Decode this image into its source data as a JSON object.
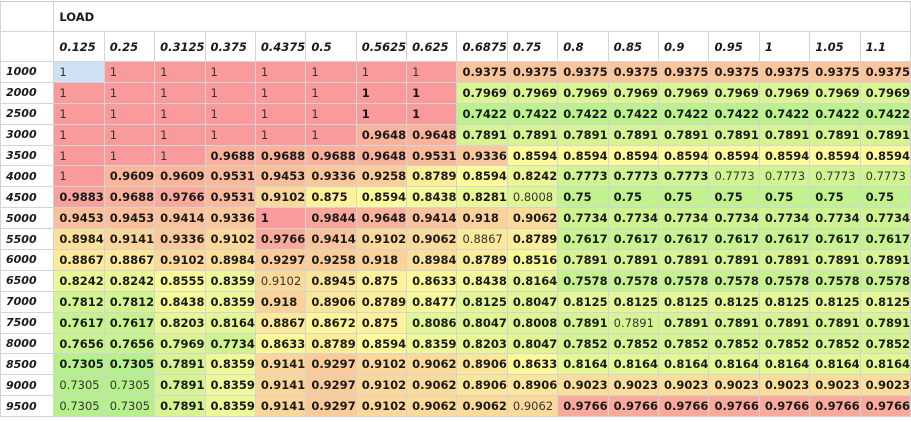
{
  "header": {
    "group_label": "LOAD"
  },
  "columns": [
    "0.125",
    "0.25",
    "0.3125",
    "0.375",
    "0.4375",
    "0.5",
    "0.5625",
    "0.625",
    "0.6875",
    "0.75",
    "0.8",
    "0.85",
    "0.9",
    "0.95",
    "1",
    "1.05",
    "1.1"
  ],
  "colors": {
    "min": "#b6f08c",
    "mid": "#fdfb99",
    "max": "#f99a9c",
    "selected": "#cfe2f3",
    "gridline": "#d4d4d4"
  },
  "scale": {
    "min": 0.7305,
    "mid": 0.86,
    "max": 1.0
  },
  "selected_cell": {
    "row": 0,
    "col": 0
  },
  "rows": [
    {
      "label": "1000",
      "values": [
        "1",
        "1",
        "1",
        "1",
        "1",
        "1",
        "1",
        "1",
        "0.9375",
        "0.9375",
        "0.9375",
        "0.9375",
        "0.9375",
        "0.9375",
        "0.9375",
        "0.9375",
        "0.9375"
      ],
      "bold": [
        0,
        0,
        0,
        0,
        0,
        0,
        0,
        0,
        1,
        1,
        1,
        1,
        1,
        1,
        1,
        1,
        1
      ]
    },
    {
      "label": "2000",
      "values": [
        "1",
        "1",
        "1",
        "1",
        "1",
        "1",
        "1",
        "1",
        "0.7969",
        "0.7969",
        "0.7969",
        "0.7969",
        "0.7969",
        "0.7969",
        "0.7969",
        "0.7969",
        "0.7969"
      ],
      "bold": [
        0,
        0,
        0,
        0,
        0,
        0,
        1,
        1,
        1,
        1,
        1,
        1,
        1,
        1,
        1,
        1,
        1
      ]
    },
    {
      "label": "2500",
      "values": [
        "1",
        "1",
        "1",
        "1",
        "1",
        "1",
        "1",
        "1",
        "0.7422",
        "0.7422",
        "0.7422",
        "0.7422",
        "0.7422",
        "0.7422",
        "0.7422",
        "0.7422",
        "0.7422"
      ],
      "bold": [
        0,
        0,
        0,
        0,
        0,
        0,
        1,
        1,
        1,
        1,
        1,
        1,
        1,
        1,
        1,
        1,
        1
      ]
    },
    {
      "label": "3000",
      "values": [
        "1",
        "1",
        "1",
        "1",
        "1",
        "1",
        "0.9648",
        "0.9648",
        "0.7891",
        "0.7891",
        "0.7891",
        "0.7891",
        "0.7891",
        "0.7891",
        "0.7891",
        "0.7891",
        "0.7891"
      ],
      "bold": [
        0,
        0,
        0,
        0,
        0,
        0,
        1,
        1,
        1,
        1,
        1,
        1,
        1,
        1,
        1,
        1,
        1
      ]
    },
    {
      "label": "3500",
      "values": [
        "1",
        "1",
        "1",
        "0.9688",
        "0.9688",
        "0.9688",
        "0.9648",
        "0.9531",
        "0.9336",
        "0.8594",
        "0.8594",
        "0.8594",
        "0.8594",
        "0.8594",
        "0.8594",
        "0.8594",
        "0.8594"
      ],
      "bold": [
        0,
        0,
        0,
        1,
        1,
        1,
        1,
        1,
        1,
        1,
        1,
        1,
        1,
        1,
        1,
        1,
        1
      ]
    },
    {
      "label": "4000",
      "values": [
        "1",
        "0.9609",
        "0.9609",
        "0.9531",
        "0.9453",
        "0.9336",
        "0.9258",
        "0.8789",
        "0.8594",
        "0.8242",
        "0.7773",
        "0.7773",
        "0.7773",
        "0.7773",
        "0.7773",
        "0.7773",
        "0.7773"
      ],
      "bold": [
        0,
        1,
        1,
        1,
        1,
        1,
        1,
        1,
        1,
        1,
        1,
        1,
        1,
        0,
        0,
        0,
        0
      ]
    },
    {
      "label": "4500",
      "values": [
        "0.9883",
        "0.9688",
        "0.9766",
        "0.9531",
        "0.9102",
        "0.875",
        "0.8594",
        "0.8438",
        "0.8281",
        "0.8008",
        "0.75",
        "0.75",
        "0.75",
        "0.75",
        "0.75",
        "0.75",
        "0.75"
      ],
      "bold": [
        1,
        1,
        1,
        1,
        1,
        1,
        1,
        1,
        1,
        0,
        1,
        1,
        1,
        1,
        1,
        1,
        1
      ]
    },
    {
      "label": "5000",
      "values": [
        "0.9453",
        "0.9453",
        "0.9414",
        "0.9336",
        "1",
        "0.9844",
        "0.9648",
        "0.9414",
        "0.918",
        "0.9062",
        "0.7734",
        "0.7734",
        "0.7734",
        "0.7734",
        "0.7734",
        "0.7734",
        "0.7734"
      ],
      "bold": [
        1,
        1,
        1,
        1,
        1,
        1,
        1,
        1,
        1,
        1,
        1,
        1,
        1,
        1,
        1,
        1,
        1
      ]
    },
    {
      "label": "5500",
      "values": [
        "0.8984",
        "0.9141",
        "0.9336",
        "0.9102",
        "0.9766",
        "0.9414",
        "0.9102",
        "0.9062",
        "0.8867",
        "0.8789",
        "0.7617",
        "0.7617",
        "0.7617",
        "0.7617",
        "0.7617",
        "0.7617",
        "0.7617"
      ],
      "bold": [
        1,
        1,
        1,
        1,
        1,
        1,
        1,
        1,
        0,
        1,
        1,
        1,
        1,
        1,
        1,
        1,
        1
      ]
    },
    {
      "label": "6000",
      "values": [
        "0.8867",
        "0.8867",
        "0.9102",
        "0.8984",
        "0.9297",
        "0.9258",
        "0.918",
        "0.8984",
        "0.8789",
        "0.8516",
        "0.7891",
        "0.7891",
        "0.7891",
        "0.7891",
        "0.7891",
        "0.7891",
        "0.7891"
      ],
      "bold": [
        1,
        1,
        1,
        1,
        1,
        1,
        1,
        1,
        1,
        1,
        1,
        1,
        1,
        1,
        1,
        1,
        1
      ]
    },
    {
      "label": "6500",
      "values": [
        "0.8242",
        "0.8242",
        "0.8555",
        "0.8359",
        "0.9102",
        "0.8945",
        "0.875",
        "0.8633",
        "0.8438",
        "0.8164",
        "0.7578",
        "0.7578",
        "0.7578",
        "0.7578",
        "0.7578",
        "0.7578",
        "0.7578"
      ],
      "bold": [
        1,
        1,
        1,
        1,
        0,
        1,
        1,
        1,
        1,
        1,
        1,
        1,
        1,
        1,
        1,
        1,
        1
      ]
    },
    {
      "label": "7000",
      "values": [
        "0.7812",
        "0.7812",
        "0.8438",
        "0.8359",
        "0.918",
        "0.8906",
        "0.8789",
        "0.8477",
        "0.8125",
        "0.8047",
        "0.8125",
        "0.8125",
        "0.8125",
        "0.8125",
        "0.8125",
        "0.8125",
        "0.8125"
      ],
      "bold": [
        1,
        1,
        1,
        1,
        1,
        1,
        1,
        1,
        1,
        1,
        1,
        1,
        1,
        1,
        1,
        1,
        1
      ]
    },
    {
      "label": "7500",
      "values": [
        "0.7617",
        "0.7617",
        "0.8203",
        "0.8164",
        "0.8867",
        "0.8672",
        "0.875",
        "0.8086",
        "0.8047",
        "0.8008",
        "0.7891",
        "0.7891",
        "0.7891",
        "0.7891",
        "0.7891",
        "0.7891",
        "0.7891"
      ],
      "bold": [
        1,
        1,
        1,
        1,
        1,
        1,
        1,
        1,
        1,
        1,
        1,
        0,
        1,
        1,
        1,
        1,
        1
      ]
    },
    {
      "label": "8000",
      "values": [
        "0.7656",
        "0.7656",
        "0.7969",
        "0.7734",
        "0.8633",
        "0.8789",
        "0.8594",
        "0.8359",
        "0.8203",
        "0.8047",
        "0.7852",
        "0.7852",
        "0.7852",
        "0.7852",
        "0.7852",
        "0.7852",
        "0.7852"
      ],
      "bold": [
        1,
        1,
        1,
        1,
        1,
        1,
        1,
        1,
        1,
        1,
        1,
        1,
        1,
        1,
        1,
        1,
        1
      ]
    },
    {
      "label": "8500",
      "values": [
        "0.7305",
        "0.7305",
        "0.7891",
        "0.8359",
        "0.9141",
        "0.9297",
        "0.9102",
        "0.9062",
        "0.8906",
        "0.8633",
        "0.8164",
        "0.8164",
        "0.8164",
        "0.8164",
        "0.8164",
        "0.8164",
        "0.8164"
      ],
      "bold": [
        1,
        1,
        1,
        1,
        1,
        1,
        1,
        1,
        1,
        1,
        1,
        1,
        1,
        1,
        1,
        1,
        1
      ]
    },
    {
      "label": "9000",
      "values": [
        "0.7305",
        "0.7305",
        "0.7891",
        "0.8359",
        "0.9141",
        "0.9297",
        "0.9102",
        "0.9062",
        "0.8906",
        "0.8906",
        "0.9023",
        "0.9023",
        "0.9023",
        "0.9023",
        "0.9023",
        "0.9023",
        "0.9023"
      ],
      "bold": [
        0,
        0,
        1,
        1,
        1,
        1,
        1,
        1,
        1,
        1,
        1,
        1,
        1,
        1,
        1,
        1,
        1
      ]
    },
    {
      "label": "9500",
      "values": [
        "0.7305",
        "0.7305",
        "0.7891",
        "0.8359",
        "0.9141",
        "0.9297",
        "0.9102",
        "0.9062",
        "0.9062",
        "0.9062",
        "0.9766",
        "0.9766",
        "0.9766",
        "0.9766",
        "0.9766",
        "0.9766",
        "0.9766"
      ],
      "bold": [
        0,
        0,
        1,
        1,
        1,
        1,
        1,
        1,
        1,
        0,
        1,
        1,
        1,
        1,
        1,
        1,
        1
      ]
    }
  ]
}
